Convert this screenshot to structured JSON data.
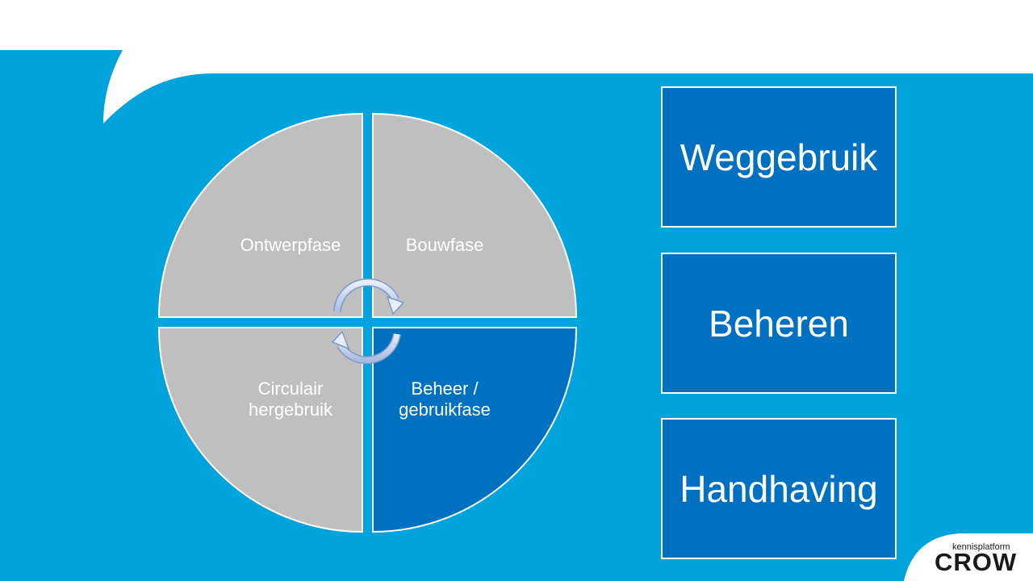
{
  "colors": {
    "background_blue": "#00a3dc",
    "quadrant_grey": "#bfbfbf",
    "quadrant_active": "#0070c0",
    "box_fill": "#0070c0",
    "border": "#ffffff"
  },
  "cycle": {
    "quadrants": [
      {
        "id": "top-left",
        "lines": [
          "Ontwerpfase"
        ],
        "active": false
      },
      {
        "id": "top-right",
        "lines": [
          "Bouwfase"
        ],
        "active": false
      },
      {
        "id": "bottom-left",
        "lines": [
          "Circulair",
          "hergebruik"
        ],
        "active": false
      },
      {
        "id": "bottom-right",
        "lines": [
          "Beheer /",
          "gebruikfase"
        ],
        "active": true
      }
    ],
    "icons": [
      "cycle-arrow-icon",
      "cycle-arrow-icon"
    ]
  },
  "boxes": [
    {
      "label": "Weggebruik"
    },
    {
      "label": "Beheren"
    },
    {
      "label": "Handhaving"
    }
  ],
  "logo": {
    "small_text": "kennisplatform",
    "main_text": "CROW"
  }
}
